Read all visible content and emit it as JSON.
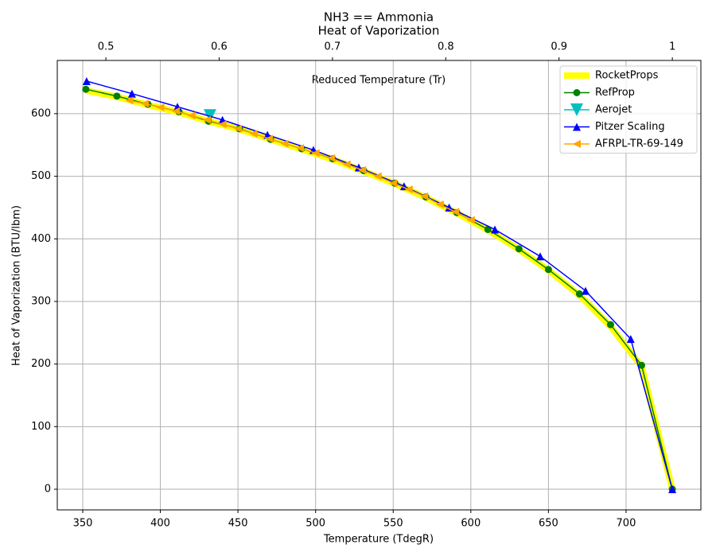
{
  "chart_data": {
    "type": "line",
    "title": "NH3 == Ammonia",
    "subtitle": "Heat of Vaporization",
    "xlabel": "Temperature (TdegR)",
    "ylabel": "Heat of Vaporization (BTU/lbm)",
    "x2label": "Reduced Temperature (Tr)",
    "xlim": [
      333.6,
      748.2
    ],
    "xticks": [
      350,
      400,
      450,
      500,
      550,
      600,
      650,
      700
    ],
    "x2lim": [
      0.4571,
      1.0252
    ],
    "x2ticks": [
      0.5,
      0.6,
      0.7,
      0.8,
      0.9,
      1.0
    ],
    "ylim": [
      -33,
      685
    ],
    "yticks": [
      0,
      100,
      200,
      300,
      400,
      500,
      600
    ],
    "grid": true,
    "legend": "upper right",
    "series": [
      {
        "name": "RocketProps",
        "color": "#ffff00",
        "linewidth": 8,
        "marker": "none",
        "x": [
          352,
          372,
          392,
          412,
          431,
          451,
          471,
          491,
          511,
          531,
          551,
          571,
          591,
          611,
          631,
          650,
          670,
          690,
          710,
          729.8
        ],
        "values": [
          637,
          627,
          614,
          602,
          588,
          575,
          559,
          543,
          527,
          508,
          488,
          466,
          441,
          414,
          383,
          350,
          310,
          260,
          196,
          0
        ]
      },
      {
        "name": "RefProp",
        "color": "#008000",
        "linewidth": 1.5,
        "marker": "o",
        "x": [
          352,
          372,
          392,
          412,
          431,
          451,
          471,
          491,
          511,
          531,
          551,
          571,
          591,
          611,
          631,
          650,
          670,
          690,
          710,
          729.8
        ],
        "values": [
          639,
          628,
          615,
          603,
          588,
          576,
          559,
          544,
          528,
          509,
          489,
          467,
          442,
          415,
          384,
          351,
          312,
          263,
          198,
          0
        ]
      },
      {
        "name": "Aerojet",
        "color": "#00bfbf",
        "linewidth": 1.5,
        "marker": "v",
        "x": [
          432
        ],
        "values": [
          597
        ]
      },
      {
        "name": "Pitzer Scaling",
        "color": "#0000ff",
        "linewidth": 1.5,
        "marker": "^",
        "x": [
          352.5,
          381.7,
          411,
          440,
          469,
          498.6,
          527.8,
          557,
          586,
          615.5,
          644.7,
          673.9,
          703,
          729.8
        ],
        "values": [
          652,
          632,
          611,
          590,
          566,
          542,
          514,
          484,
          450,
          415,
          372,
          317,
          240,
          0
        ]
      },
      {
        "name": "AFRPL-TR-69-149",
        "color": "#ffa500",
        "linewidth": 1.5,
        "marker": "<",
        "x": [
          380,
          390,
          400,
          410,
          420,
          430,
          440,
          450,
          460,
          470,
          480,
          490,
          500,
          510,
          520,
          530,
          540,
          550,
          560,
          570,
          580,
          590,
          600
        ],
        "values": [
          621,
          616,
          610,
          604,
          597,
          590,
          583,
          576,
          568,
          560,
          552,
          545,
          537,
          529,
          519,
          510,
          500,
          489,
          479,
          468,
          455,
          443,
          430
        ]
      }
    ]
  }
}
